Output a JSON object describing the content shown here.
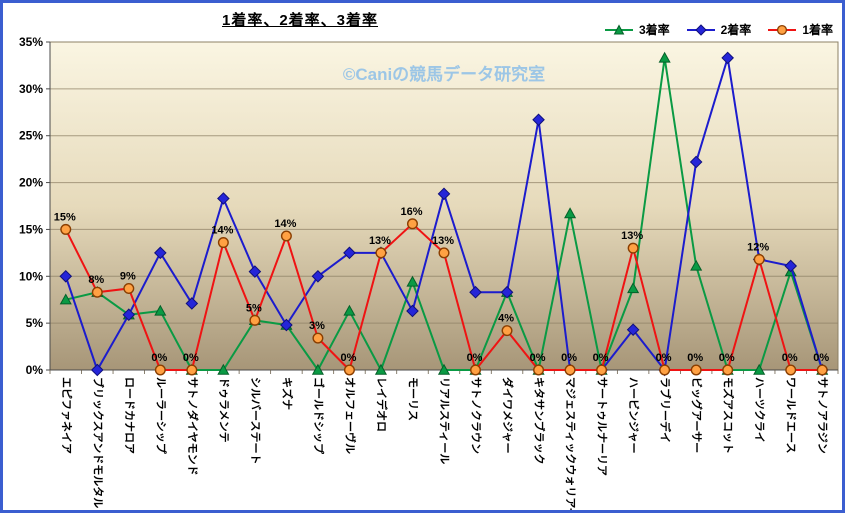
{
  "title": "1着率、2着率、3着率",
  "watermark": "©Caniの競馬データ研究室",
  "chart_data": {
    "type": "line",
    "title": "1着率、2着率、3着率",
    "ylim": [
      0,
      35
    ],
    "ytick_step": 5,
    "ytick_labels": [
      "0%",
      "5%",
      "10%",
      "15%",
      "20%",
      "25%",
      "30%",
      "35%"
    ],
    "grid": true,
    "legend_position": "top-right",
    "plot_bg_gradient": [
      "#faf5e2",
      "#e6dabb",
      "#a79678"
    ],
    "border_color": "#3b5ed0",
    "categories": [
      "エピファネイア",
      "ブリックスアンドモルタル",
      "ロードカナロア",
      "ルーラーシップ",
      "サトノダイヤモンド",
      "ドゥラメンテ",
      "シルバーステート",
      "キズナ",
      "ゴールドシップ",
      "オルフェーヴル",
      "レイデオロ",
      "モーリス",
      "リアルスティール",
      "サトノクラウン",
      "ダイワメジャー",
      "キタサンブラック",
      "マジェスティックウォリアー",
      "サートゥルナーリア",
      "ハービンジャー",
      "ラブリーデイ",
      "ビッグアーサー",
      "モズアスコット",
      "ハーツクライ",
      "ワールドエース",
      "サトノアラジン"
    ],
    "series": [
      {
        "id": "rate-3rd",
        "name": "3着率",
        "color": "#0a9a44",
        "marker": "triangle",
        "marker_fill": "#0a9a44",
        "marker_stroke": "#056029",
        "values": [
          7.5,
          8.3,
          5.9,
          6.3,
          0,
          0,
          5.3,
          4.8,
          0,
          6.3,
          0,
          9.4,
          0,
          0,
          8.3,
          0,
          16.7,
          0,
          8.7,
          33.3,
          11.1,
          0,
          0,
          10.5,
          0
        ]
      },
      {
        "id": "rate-2nd",
        "name": "2着率",
        "color": "#1c1ccd",
        "marker": "diamond",
        "marker_fill": "#2525d8",
        "marker_stroke": "#10107a",
        "values": [
          10.0,
          0,
          5.9,
          12.5,
          7.1,
          18.3,
          10.5,
          4.8,
          10.0,
          12.5,
          12.5,
          6.3,
          18.8,
          8.3,
          8.3,
          26.7,
          0,
          0,
          4.3,
          0,
          22.2,
          33.3,
          11.8,
          11.1,
          0
        ]
      },
      {
        "id": "rate-1st",
        "name": "1着率",
        "color": "#ef1313",
        "marker": "circle",
        "marker_fill": "#ffa143",
        "marker_stroke": "#8a3e00",
        "values": [
          15.0,
          8.3,
          8.7,
          0,
          0,
          13.6,
          5.3,
          14.3,
          3.4,
          0,
          12.5,
          15.6,
          12.5,
          0,
          4.2,
          0,
          0,
          0,
          13.0,
          0,
          0,
          0,
          11.8,
          0,
          0
        ],
        "data_labels": [
          "15%",
          "8%",
          "9%",
          "0%",
          "0%",
          "14%",
          "5%",
          "14%",
          "3%",
          "0%",
          "13%",
          "16%",
          "13%",
          "0%",
          "4%",
          "0%",
          "0%",
          "0%",
          "13%",
          "0%",
          "0%",
          "0%",
          "12%",
          "0%",
          "0%"
        ]
      }
    ]
  }
}
